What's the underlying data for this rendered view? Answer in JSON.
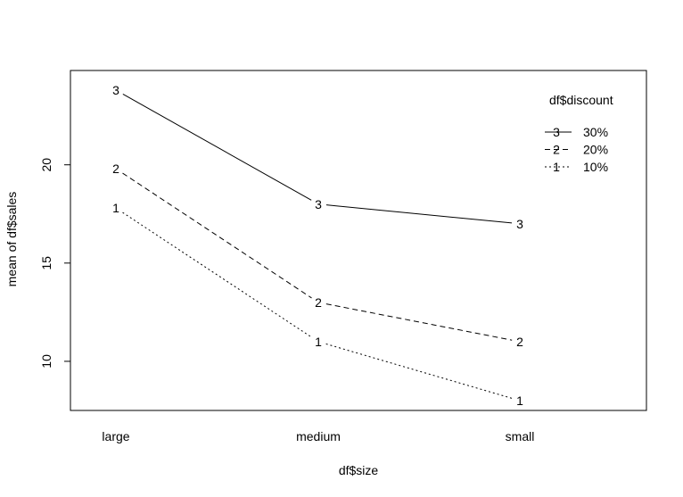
{
  "chart_data": {
    "type": "line",
    "title": "",
    "xlabel": "df$size",
    "ylabel": "mean of  df$sales",
    "categories": [
      "large",
      "medium",
      "small"
    ],
    "ylim": [
      7.5,
      24.8
    ],
    "yticks": [
      10,
      15,
      20
    ],
    "grid": false,
    "legend": {
      "title": "df$discount",
      "placement": "top-right"
    },
    "series": [
      {
        "name": "30%",
        "symbol": "3",
        "dash": "solid",
        "values": [
          23.8,
          18.0,
          17.0
        ]
      },
      {
        "name": "20%",
        "symbol": "2",
        "dash": "dashed",
        "values": [
          19.8,
          13.0,
          11.0
        ]
      },
      {
        "name": "10%",
        "symbol": "1",
        "dash": "dotted",
        "values": [
          17.8,
          11.0,
          8.0
        ]
      }
    ]
  }
}
